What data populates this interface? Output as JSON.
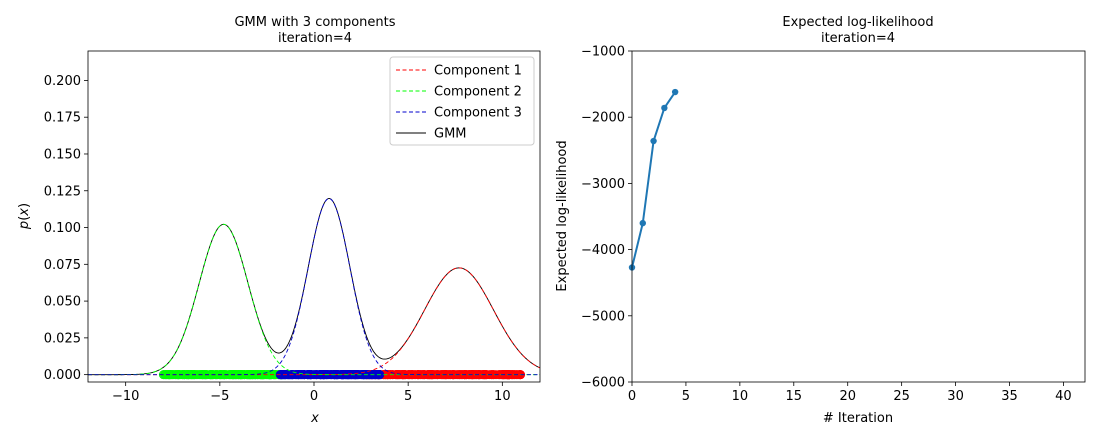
{
  "chart_data": [
    {
      "type": "line",
      "title": "GMM with 3 components",
      "subtitle": "iteration=4",
      "xlabel": "x",
      "ylabel": "p(x)",
      "xlim": [
        -12,
        12
      ],
      "ylim": [
        -0.005,
        0.22
      ],
      "xticks": [
        -10,
        -5,
        0,
        5,
        10
      ],
      "xtick_labels": [
        "−10",
        "−5",
        "0",
        "5",
        "10"
      ],
      "yticks": [
        0.0,
        0.025,
        0.05,
        0.075,
        0.1,
        0.125,
        0.15,
        0.175,
        0.2
      ],
      "ytick_labels": [
        "0.000",
        "0.025",
        "0.050",
        "0.075",
        "0.100",
        "0.125",
        "0.150",
        "0.175",
        "0.200"
      ],
      "grid": false,
      "legend_position": "top-right",
      "series": [
        {
          "name": "Component 1",
          "style": "dashed",
          "color": "#ff0000",
          "weight": 0.333,
          "mean": 7.7,
          "std": 1.83
        },
        {
          "name": "Component 2",
          "style": "dashed",
          "color": "#00ff00",
          "weight": 0.333,
          "mean": -4.8,
          "std": 1.3
        },
        {
          "name": "Component 3",
          "style": "dashed",
          "color": "#0000cc",
          "weight": 0.333,
          "mean": 0.8,
          "std": 1.11
        },
        {
          "name": "GMM",
          "style": "solid",
          "color": "#000000"
        }
      ],
      "samples": [
        {
          "color": "#ff0000",
          "range": [
            2.8,
            11
          ]
        },
        {
          "color": "#00ff00",
          "range": [
            -8,
            -1.5
          ]
        },
        {
          "color": "#0000cc",
          "range": [
            -1.8,
            3.5
          ]
        }
      ]
    },
    {
      "type": "line",
      "title": "Expected log-likelihood",
      "subtitle": "iteration=4",
      "xlabel": "# Iteration",
      "ylabel": "Expected log-likelihood",
      "xlim": [
        0,
        42
      ],
      "ylim": [
        -6000,
        -1000
      ],
      "xticks": [
        0,
        5,
        10,
        15,
        20,
        25,
        30,
        35,
        40
      ],
      "xtick_labels": [
        "0",
        "5",
        "10",
        "15",
        "20",
        "25",
        "30",
        "35",
        "40"
      ],
      "yticks": [
        -6000,
        -5000,
        -4000,
        -3000,
        -2000,
        -1000
      ],
      "ytick_labels": [
        "−6000",
        "−5000",
        "−4000",
        "−3000",
        "−2000",
        "−1000"
      ],
      "grid": false,
      "color": "#1f77b4",
      "x": [
        0,
        1,
        2,
        3,
        4
      ],
      "y": [
        -4270,
        -3600,
        -2360,
        -1860,
        -1620
      ]
    }
  ]
}
